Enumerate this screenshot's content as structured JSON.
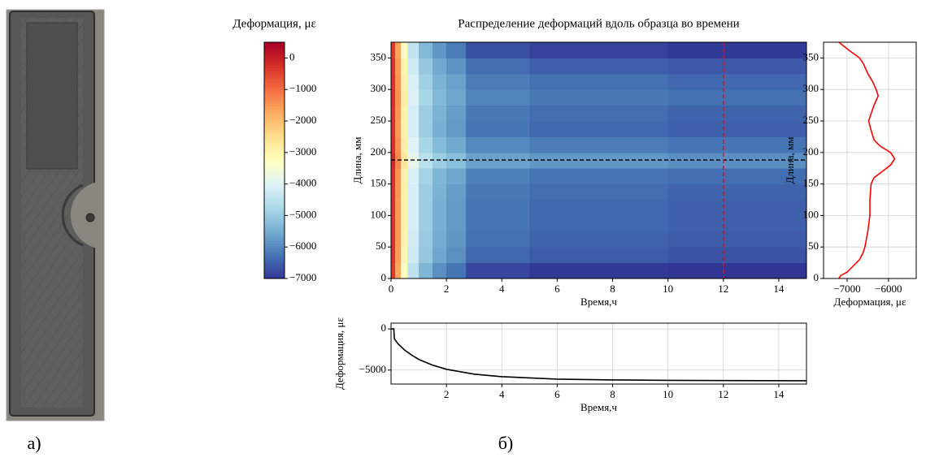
{
  "panel_labels": [
    "а)",
    "б)"
  ],
  "chart_data": [
    {
      "type": "heatmap",
      "title": "Распределение деформаций вдоль образца во времени",
      "xlabel": "Время,ч",
      "ylabel": "Длина, мм",
      "x_edges": [
        0,
        0.15,
        0.35,
        0.6,
        1,
        1.5,
        2,
        2.7,
        5,
        10,
        15
      ],
      "y_edges": [
        0,
        25,
        50,
        75,
        100,
        125,
        150,
        175,
        200,
        225,
        250,
        275,
        300,
        325,
        350,
        375
      ],
      "z": [
        [
          -400,
          -1650,
          -3250,
          -4500,
          -5350,
          -5900,
          -6250,
          -6800,
          -6950,
          -7050
        ],
        [
          -300,
          -1550,
          -3050,
          -4250,
          -5050,
          -5600,
          -5900,
          -6400,
          -6550,
          -6650
        ],
        [
          -300,
          -1500,
          -3000,
          -4200,
          -5000,
          -5500,
          -5800,
          -6300,
          -6450,
          -6550
        ],
        [
          -300,
          -1500,
          -2950,
          -4150,
          -4950,
          -5450,
          -5750,
          -6250,
          -6400,
          -6500
        ],
        [
          -300,
          -1500,
          -2950,
          -4150,
          -4950,
          -5450,
          -5750,
          -6250,
          -6400,
          -6500
        ],
        [
          -300,
          -1450,
          -2950,
          -4150,
          -4950,
          -5400,
          -5700,
          -6200,
          -6350,
          -6450
        ],
        [
          -250,
          -1450,
          -2900,
          -4100,
          -4850,
          -5350,
          -5600,
          -6100,
          -6250,
          -6350
        ],
        [
          -150,
          -1300,
          -2700,
          -3800,
          -4550,
          -4950,
          -5200,
          -5650,
          -5800,
          -5900
        ],
        [
          -250,
          -1400,
          -2850,
          -4000,
          -4800,
          -5250,
          -5550,
          -6000,
          -6150,
          -6250
        ],
        [
          -300,
          -1500,
          -2950,
          -4150,
          -4950,
          -5450,
          -5750,
          -6250,
          -6400,
          -6500
        ],
        [
          -300,
          -1450,
          -2950,
          -4150,
          -4950,
          -5400,
          -5700,
          -6200,
          -6350,
          -6450
        ],
        [
          -250,
          -1450,
          -2850,
          -4050,
          -4800,
          -5300,
          -5600,
          -6050,
          -6200,
          -6300
        ],
        [
          -300,
          -1450,
          -2900,
          -4100,
          -4900,
          -5400,
          -5650,
          -6150,
          -6300,
          -6400
        ],
        [
          -300,
          -1500,
          -3000,
          -4250,
          -5050,
          -5550,
          -5850,
          -6350,
          -6500,
          -6600
        ],
        [
          -400,
          -1600,
          -3200,
          -4450,
          -5300,
          -5800,
          -6150,
          -6700,
          -6850,
          -6950
        ]
      ],
      "xlim": [
        0,
        15
      ],
      "xticks": [
        0,
        2,
        4,
        6,
        8,
        10,
        12,
        14
      ],
      "ylim": [
        0,
        375
      ],
      "yticks": [
        0,
        50,
        100,
        150,
        200,
        250,
        300,
        350
      ],
      "colormap": [
        "#313695",
        "#4575b4",
        "#74add1",
        "#abd9e9",
        "#e0f3f8",
        "#ffffbf",
        "#fee090",
        "#fdae61",
        "#f46d43",
        "#d73027",
        "#a50026"
      ],
      "hline": {
        "value": 188,
        "color": "#000000"
      },
      "vline": {
        "value": 12,
        "color": "#ff0000"
      },
      "colorbar": {
        "title": "Деформация, με",
        "lim": [
          -7000,
          500
        ],
        "ticks": [
          0,
          {
            "value": -1000,
            "label": "−1000"
          },
          {
            "value": -2000,
            "label": "−2000"
          },
          {
            "value": -3000,
            "label": "−3000"
          },
          {
            "value": -4000,
            "label": "−4000"
          },
          {
            "value": -5000,
            "label": "−5000"
          },
          {
            "value": -6000,
            "label": "−6000"
          },
          {
            "value": -7000,
            "label": "−7000"
          }
        ]
      }
    },
    {
      "type": "profile",
      "xlabel": "Деформация, με",
      "ylabel": "Длина, мм",
      "color": "#ff0000",
      "grid": true,
      "y": [
        0,
        5,
        10,
        20,
        30,
        40,
        50,
        75,
        100,
        125,
        150,
        160,
        170,
        180,
        190,
        200,
        210,
        220,
        235,
        250,
        262,
        275,
        290,
        300,
        312,
        325,
        340,
        350,
        362,
        375
      ],
      "values": [
        -7200,
        -7150,
        -7000,
        -6850,
        -6700,
        -6620,
        -6570,
        -6500,
        -6450,
        -6450,
        -6420,
        -6350,
        -6150,
        -5950,
        -5850,
        -5950,
        -6200,
        -6350,
        -6420,
        -6480,
        -6420,
        -6350,
        -6250,
        -6300,
        -6380,
        -6500,
        -6600,
        -6700,
        -6950,
        -7200
      ],
      "xlim": [
        -7570,
        -5330
      ],
      "xticks": [
        {
          "value": -7000,
          "label": "−7000"
        },
        {
          "value": -6000,
          "label": "−6000"
        }
      ],
      "ylim": [
        0,
        375
      ],
      "yticks": [
        0,
        50,
        100,
        150,
        200,
        250,
        300,
        350
      ]
    },
    {
      "type": "line",
      "xlabel": "Время,ч",
      "ylabel": "Деформация, με",
      "color": "#000000",
      "grid": true,
      "x": [
        0,
        0.1,
        0.12,
        0.25,
        0.5,
        0.75,
        1,
        1.5,
        2,
        2.5,
        3,
        4,
        5,
        6,
        8,
        10,
        12,
        15
      ],
      "values": [
        0,
        0,
        -1200,
        -1800,
        -2600,
        -3200,
        -3700,
        -4400,
        -4900,
        -5200,
        -5500,
        -5800,
        -5950,
        -6100,
        -6200,
        -6250,
        -6280,
        -6300
      ],
      "xlim": [
        0,
        15
      ],
      "xticks": [
        2,
        4,
        6,
        8,
        10,
        12,
        14
      ],
      "ylim": [
        -6700,
        700
      ],
      "yticks": [
        0,
        {
          "value": -5000,
          "label": "−5000"
        }
      ]
    }
  ]
}
